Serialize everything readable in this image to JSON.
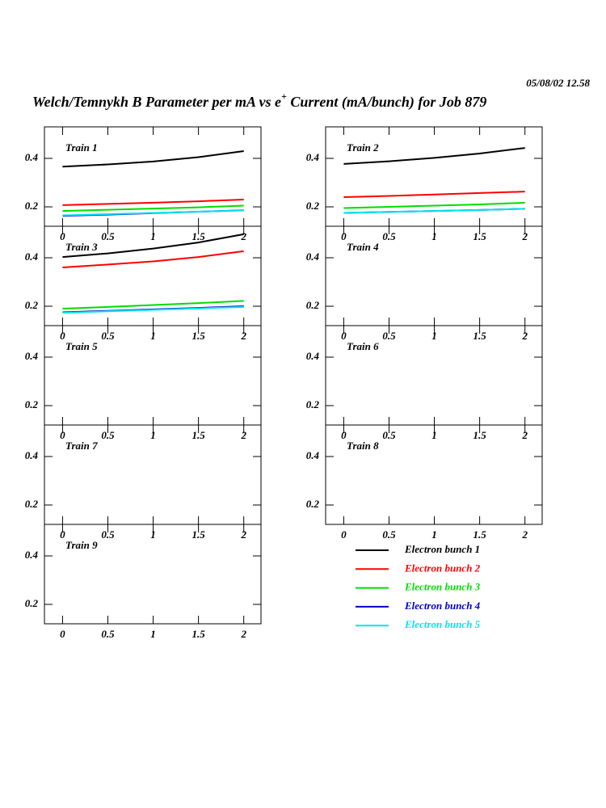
{
  "header": {
    "timestamp": "05/08/02   12.58",
    "title": [
      "Welch/Temnykh B Parameter per mA vs e",
      "+",
      " Current (mA/bunch) for Job 879"
    ]
  },
  "chart_data": [
    {
      "type": "line",
      "title": "Train 1",
      "x": [
        0,
        0.5,
        1,
        1.5,
        2
      ],
      "xlim": [
        -0.2,
        2.19
      ],
      "xticks": [
        0,
        0.5,
        1,
        1.5,
        2
      ],
      "ylim": [
        0.12,
        0.53
      ],
      "yticks": [
        0.2,
        0.4
      ],
      "series": [
        {
          "name": "Electron bunch 1",
          "color": "#000000",
          "values": [
            0.366,
            0.375,
            0.387,
            0.405,
            0.43
          ]
        },
        {
          "name": "Electron bunch 2",
          "color": "#ff0000",
          "values": [
            0.207,
            0.212,
            0.217,
            0.223,
            0.23
          ]
        },
        {
          "name": "Electron bunch 3",
          "color": "#00dd00",
          "values": [
            0.183,
            0.188,
            0.193,
            0.198,
            0.205
          ]
        },
        {
          "name": "Electron bunch 4",
          "color": "#0000cc",
          "values": [
            0.163,
            0.168,
            0.174,
            0.18,
            0.186
          ]
        },
        {
          "name": "Electron bunch 5",
          "color": "#00e5ee",
          "values": [
            0.165,
            0.17,
            0.175,
            0.18,
            0.185
          ]
        }
      ]
    },
    {
      "type": "line",
      "title": "Train 2",
      "x": [
        0,
        0.5,
        1,
        1.5,
        2
      ],
      "xlim": [
        -0.2,
        2.19
      ],
      "xticks": [
        0,
        0.5,
        1,
        1.5,
        2
      ],
      "ylim": [
        0.12,
        0.53
      ],
      "yticks": [
        0.2,
        0.4
      ],
      "series": [
        {
          "name": "Electron bunch 1",
          "color": "#000000",
          "values": [
            0.377,
            0.388,
            0.402,
            0.42,
            0.443
          ]
        },
        {
          "name": "Electron bunch 2",
          "color": "#ff0000",
          "values": [
            0.24,
            0.245,
            0.251,
            0.257,
            0.263
          ]
        },
        {
          "name": "Electron bunch 3",
          "color": "#00dd00",
          "values": [
            0.195,
            0.2,
            0.205,
            0.21,
            0.217
          ]
        },
        {
          "name": "Electron bunch 4",
          "color": "#0000cc",
          "values": [
            0.175,
            0.179,
            0.183,
            0.187,
            0.192
          ]
        },
        {
          "name": "Electron bunch 5",
          "color": "#00e5ee",
          "values": [
            0.175,
            0.179,
            0.183,
            0.187,
            0.192
          ]
        }
      ]
    },
    {
      "type": "line",
      "title": "Train 3",
      "x": [
        0,
        0.5,
        1,
        1.5,
        2
      ],
      "xlim": [
        -0.2,
        2.19
      ],
      "xticks": [
        0,
        0.5,
        1,
        1.5,
        2
      ],
      "ylim": [
        0.12,
        0.53
      ],
      "yticks": [
        0.2,
        0.4
      ],
      "series": [
        {
          "name": "Electron bunch 1",
          "color": "#000000",
          "values": [
            0.403,
            0.418,
            0.438,
            0.463,
            0.497
          ]
        },
        {
          "name": "Electron bunch 2",
          "color": "#ff0000",
          "values": [
            0.36,
            0.372,
            0.385,
            0.403,
            0.427
          ]
        },
        {
          "name": "Electron bunch 3",
          "color": "#00dd00",
          "values": [
            0.19,
            0.197,
            0.205,
            0.213,
            0.222
          ]
        },
        {
          "name": "Electron bunch 4",
          "color": "#0000cc",
          "values": [
            0.175,
            0.181,
            0.187,
            0.193,
            0.2
          ]
        },
        {
          "name": "Electron bunch 5",
          "color": "#00e5ee",
          "values": [
            0.173,
            0.179,
            0.185,
            0.191,
            0.197
          ]
        }
      ]
    },
    {
      "type": "line",
      "title": "Train 4",
      "xlim": [
        -0.2,
        2.19
      ],
      "xticks": [
        0,
        0.5,
        1,
        1.5,
        2
      ],
      "ylim": [
        0.12,
        0.53
      ],
      "yticks": [
        0.2,
        0.4
      ],
      "series": []
    },
    {
      "type": "line",
      "title": "Train 5",
      "xlim": [
        -0.2,
        2.19
      ],
      "xticks": [
        0,
        0.5,
        1,
        1.5,
        2
      ],
      "ylim": [
        0.12,
        0.53
      ],
      "yticks": [
        0.2,
        0.4
      ],
      "series": []
    },
    {
      "type": "line",
      "title": "Train 6",
      "xlim": [
        -0.2,
        2.19
      ],
      "xticks": [
        0,
        0.5,
        1,
        1.5,
        2
      ],
      "ylim": [
        0.12,
        0.53
      ],
      "yticks": [
        0.2,
        0.4
      ],
      "series": []
    },
    {
      "type": "line",
      "title": "Train 7",
      "xlim": [
        -0.2,
        2.19
      ],
      "xticks": [
        0,
        0.5,
        1,
        1.5,
        2
      ],
      "ylim": [
        0.12,
        0.53
      ],
      "yticks": [
        0.2,
        0.4
      ],
      "series": []
    },
    {
      "type": "line",
      "title": "Train 8",
      "xlim": [
        -0.2,
        2.19
      ],
      "xticks": [
        0,
        0.5,
        1,
        1.5,
        2
      ],
      "ylim": [
        0.12,
        0.53
      ],
      "yticks": [
        0.2,
        0.4
      ],
      "series": []
    },
    {
      "type": "line",
      "title": "Train 9",
      "xlim": [
        -0.2,
        2.19
      ],
      "xticks": [
        0,
        0.5,
        1,
        1.5,
        2
      ],
      "ylim": [
        0.12,
        0.53
      ],
      "yticks": [
        0.2,
        0.4
      ],
      "series": []
    }
  ]
}
